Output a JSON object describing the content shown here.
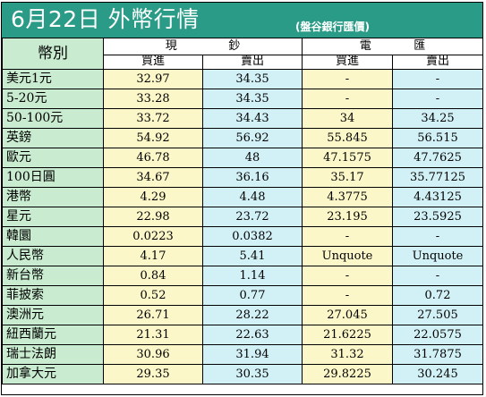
{
  "title": "6月22日 外幣行情",
  "subtitle": "(盤谷銀行匯價)",
  "headers": {
    "currency": "幣別",
    "cash": [
      "現",
      "鈔"
    ],
    "wire": [
      "電",
      "匯"
    ],
    "buy": "買進",
    "sell": "賣出"
  },
  "colors": {
    "title_bar": "#2a9b86",
    "label_bg": "#c9ecd0",
    "yellow": "#fcf7c8",
    "blue": "#d2f1f6"
  },
  "rows": [
    {
      "name": "美元1元",
      "cash_buy": "32.97",
      "cash_sell": "34.35",
      "wire_buy": "-",
      "wire_sell": "-"
    },
    {
      "name": "5-20元",
      "cash_buy": "33.28",
      "cash_sell": "34.35",
      "wire_buy": "-",
      "wire_sell": "-"
    },
    {
      "name": "50-100元",
      "cash_buy": "33.72",
      "cash_sell": "34.43",
      "wire_buy": "34",
      "wire_sell": "34.25"
    },
    {
      "name": "英鎊",
      "cash_buy": "54.92",
      "cash_sell": "56.92",
      "wire_buy": "55.845",
      "wire_sell": "56.515"
    },
    {
      "name": "歐元",
      "cash_buy": "46.78",
      "cash_sell": "48",
      "wire_buy": "47.1575",
      "wire_sell": "47.7625"
    },
    {
      "name": "100日圓",
      "cash_buy": "34.67",
      "cash_sell": "36.16",
      "wire_buy": "35.17",
      "wire_sell": "35.77125"
    },
    {
      "name": "港幣",
      "cash_buy": "4.29",
      "cash_sell": "4.48",
      "wire_buy": "4.3775",
      "wire_sell": "4.43125"
    },
    {
      "name": "星元",
      "cash_buy": "22.98",
      "cash_sell": "23.72",
      "wire_buy": "23.195",
      "wire_sell": "23.5925"
    },
    {
      "name": "韓圜",
      "cash_buy": "0.0223",
      "cash_sell": "0.0382",
      "wire_buy": "-",
      "wire_sell": "-"
    },
    {
      "name": "人民幣",
      "cash_buy": "4.17",
      "cash_sell": "5.41",
      "wire_buy": "Unquote",
      "wire_sell": "Unquote"
    },
    {
      "name": "新台幣",
      "cash_buy": "0.84",
      "cash_sell": "1.14",
      "wire_buy": "-",
      "wire_sell": "-"
    },
    {
      "name": "菲披索",
      "cash_buy": "0.52",
      "cash_sell": "0.77",
      "wire_buy": "-",
      "wire_sell": "0.72"
    },
    {
      "name": "澳洲元",
      "cash_buy": "26.71",
      "cash_sell": "28.22",
      "wire_buy": "27.045",
      "wire_sell": "27.505"
    },
    {
      "name": "紐西蘭元",
      "cash_buy": "21.31",
      "cash_sell": "22.63",
      "wire_buy": "21.6225",
      "wire_sell": "22.0575"
    },
    {
      "name": "瑞士法朗",
      "cash_buy": "30.96",
      "cash_sell": "31.94",
      "wire_buy": "31.32",
      "wire_sell": "31.7875"
    },
    {
      "name": "加拿大元",
      "cash_buy": "29.35",
      "cash_sell": "30.35",
      "wire_buy": "29.8225",
      "wire_sell": "30.245"
    }
  ]
}
